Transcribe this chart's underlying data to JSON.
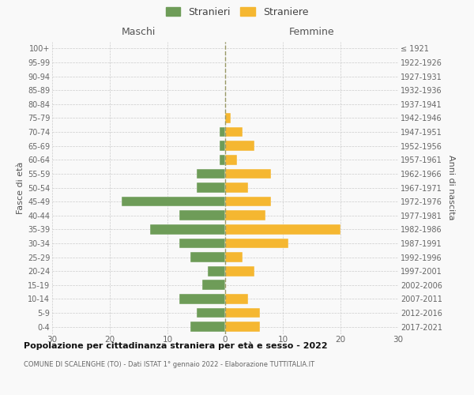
{
  "age_groups": [
    "0-4",
    "5-9",
    "10-14",
    "15-19",
    "20-24",
    "25-29",
    "30-34",
    "35-39",
    "40-44",
    "45-49",
    "50-54",
    "55-59",
    "60-64",
    "65-69",
    "70-74",
    "75-79",
    "80-84",
    "85-89",
    "90-94",
    "95-99",
    "100+"
  ],
  "birth_years": [
    "2017-2021",
    "2012-2016",
    "2007-2011",
    "2002-2006",
    "1997-2001",
    "1992-1996",
    "1987-1991",
    "1982-1986",
    "1977-1981",
    "1972-1976",
    "1967-1971",
    "1962-1966",
    "1957-1961",
    "1952-1956",
    "1947-1951",
    "1942-1946",
    "1937-1941",
    "1932-1936",
    "1927-1931",
    "1922-1926",
    "≤ 1921"
  ],
  "maschi": [
    6,
    5,
    8,
    4,
    3,
    6,
    8,
    13,
    8,
    18,
    5,
    5,
    1,
    1,
    1,
    0,
    0,
    0,
    0,
    0,
    0
  ],
  "femmine": [
    6,
    6,
    4,
    0,
    5,
    3,
    11,
    20,
    7,
    8,
    4,
    8,
    2,
    5,
    3,
    1,
    0,
    0,
    0,
    0,
    0
  ],
  "color_maschi": "#6e9c58",
  "color_femmine": "#f5b731",
  "title": "Popolazione per cittadinanza straniera per età e sesso - 2022",
  "subtitle": "COMUNE DI SCALENGHE (TO) - Dati ISTAT 1° gennaio 2022 - Elaborazione TUTTITALIA.IT",
  "xlabel_left": "Maschi",
  "xlabel_right": "Femmine",
  "ylabel_left": "Fasce di età",
  "ylabel_right": "Anni di nascita",
  "legend_maschi": "Stranieri",
  "legend_femmine": "Straniere",
  "xlim": 30,
  "bg_color": "#f9f9f9",
  "grid_color": "#cccccc",
  "bar_edge_color": "#f9f9f9"
}
